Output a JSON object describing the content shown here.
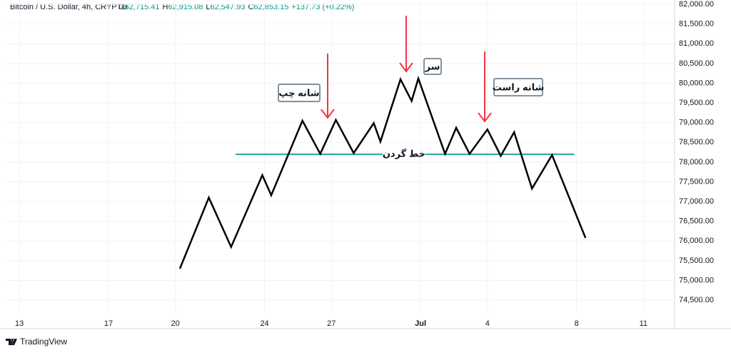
{
  "chart_data": {
    "type": "line",
    "header": {
      "symbol": "Bitcoin / U.S. Dollar, 4h, CRYPTO",
      "ohlc": [
        {
          "label": "O",
          "value": "62,715.41"
        },
        {
          "label": "H",
          "value": "62,915.08"
        },
        {
          "label": "L",
          "value": "62,547.93"
        },
        {
          "label": "C",
          "value": "62,853.15"
        }
      ],
      "change": "+137.73 (+0.22%)"
    },
    "x": [
      20.2,
      21.5,
      22.5,
      23.9,
      24.3,
      25.7,
      26.5,
      27.2,
      28.0,
      28.9,
      29.2,
      30.1,
      30.6,
      30.9,
      32.1,
      32.6,
      33.2,
      34.0,
      34.6,
      35.2,
      36.0,
      36.9,
      38.4
    ],
    "series": [
      {
        "color": "#000000",
        "values": [
          75300,
          77100,
          75850,
          77670,
          77160,
          79050,
          78210,
          79070,
          78230,
          78990,
          78520,
          80100,
          79550,
          80120,
          78210,
          78870,
          78210,
          78830,
          78160,
          78760,
          77330,
          78180,
          76080
        ]
      }
    ],
    "xlim": [
      12.45,
      42.4
    ],
    "xticks": [
      13,
      17,
      20,
      24,
      27,
      {
        "value": 31,
        "label": "Jul"
      },
      {
        "value": 34,
        "label": "4"
      },
      {
        "value": 38,
        "label": "8"
      },
      {
        "value": 41,
        "label": "11"
      }
    ],
    "ylim": [
      74140,
      82110
    ],
    "yticks": [
      {
        "value": 74500,
        "label": "74,500.00"
      },
      {
        "value": 75000,
        "label": "75,000.00"
      },
      {
        "value": 75500,
        "label": "75,500.00"
      },
      {
        "value": 76000,
        "label": "76,000.00"
      },
      {
        "value": 76500,
        "label": "76,500.00"
      },
      {
        "value": 77000,
        "label": "77,000.00"
      },
      {
        "value": 77500,
        "label": "77,500.00"
      },
      {
        "value": 78000,
        "label": "78,000.00"
      },
      {
        "value": 78500,
        "label": "78,500.00"
      },
      {
        "value": 79000,
        "label": "79,000.00"
      },
      {
        "value": 79500,
        "label": "79,500.00"
      },
      {
        "value": 80000,
        "label": "80,000.00"
      },
      {
        "value": 80500,
        "label": "80,500.00"
      },
      {
        "value": 81000,
        "label": "81,000.00"
      },
      {
        "value": 81500,
        "label": "81,500.00"
      },
      {
        "value": 82000,
        "label": "82,000.00"
      }
    ],
    "grid": true,
    "neckline": {
      "label": "خط گردن",
      "value": 78200,
      "x": [
        22.7,
        37.9
      ],
      "color": "#26a69a"
    },
    "annotations": [
      {
        "text": "شانه چپ"
      },
      {
        "text": "سر"
      },
      {
        "text": "شانه راست"
      }
    ],
    "arrow_color": "#f23645",
    "brand": "TradingView"
  }
}
